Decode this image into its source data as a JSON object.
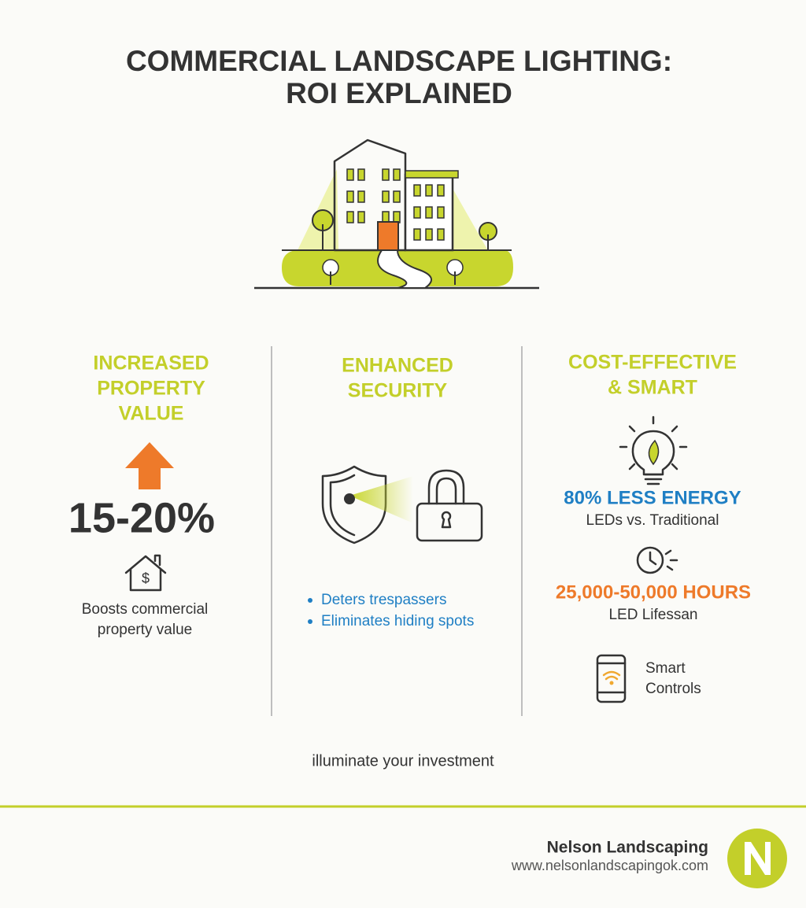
{
  "header": {
    "title_lines": [
      "COMMERCIAL LANDSCAPE LIGHTING:",
      "ROI EXPLAINED"
    ]
  },
  "columns": [
    {
      "heading_lines": [
        "INCREASED",
        "PROPERTY",
        "VALUE"
      ],
      "stat": "15-20%",
      "description_lines": [
        "Boosts commercial",
        "property value"
      ]
    },
    {
      "heading_lines": [
        "ENHANCED",
        "SECURITY"
      ],
      "bullets": [
        "Deters trespassers",
        "Eliminates hiding spots"
      ]
    },
    {
      "heading_lines": [
        "COST-EFFECTIVE",
        "& SMART"
      ],
      "items": [
        {
          "headline": "80% LESS ENERGY",
          "caption": "LEDs vs. Traditional"
        },
        {
          "headline": "25,000-50,000 HOURS",
          "caption": "LED Lifessan"
        }
      ],
      "smart_lines": [
        "Smart",
        "Controls"
      ]
    }
  ],
  "tagline": "illuminate your investment",
  "footer": {
    "company": "Nelson Landscaping",
    "url": "www.nelsonlandscapingok.com"
  }
}
